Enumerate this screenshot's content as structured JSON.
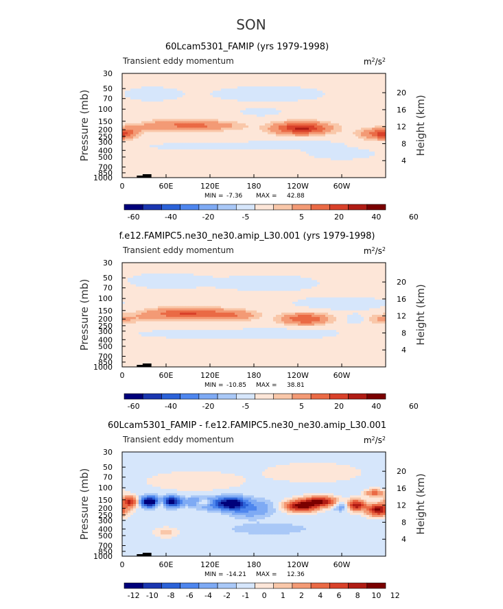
{
  "figure_title": "SON",
  "colors": {
    "neg6": "#00007a",
    "neg5": "#1a36b0",
    "neg4": "#2b62d8",
    "neg3": "#4e86ee",
    "neg2": "#7eaaf4",
    "neg1": "#a9c8f7",
    "neg0": "#d6e6fb",
    "pos0": "#fde6d8",
    "pos1": "#f9c7a9",
    "pos2": "#f39a75",
    "pos3": "#ea6a45",
    "pos4": "#d9412a",
    "pos5": "#b01c14",
    "pos6": "#7a0000"
  },
  "chart_data": [
    {
      "type": "heatmap",
      "title": "60Lcam5301_FAMIP (yrs 1979-1998)",
      "subtitle": "Transient eddy momentum",
      "units_base": "m",
      "units_exp1": "2",
      "units_mid": "/s",
      "units_exp2": "2",
      "ylabel": "Pressure (mb)",
      "ylabel_right": "Height (km)",
      "x_ticks": [
        "0",
        "60E",
        "120E",
        "180",
        "120W",
        "60W"
      ],
      "x_tick_lon": [
        0,
        60,
        120,
        180,
        240,
        300
      ],
      "xlim": [
        0,
        360
      ],
      "y_ticks": [
        "30",
        "50",
        "70",
        "100",
        "150",
        "200",
        "250",
        "300",
        "400",
        "500",
        "700",
        "850",
        "1000"
      ],
      "y_tick_p": [
        30,
        50,
        70,
        100,
        150,
        200,
        250,
        300,
        400,
        500,
        700,
        850,
        1000
      ],
      "ylim": [
        1000,
        30
      ],
      "height_ticks": [
        "4",
        "8",
        "12",
        "16",
        "20"
      ],
      "height_tick_km": [
        4,
        8,
        12,
        16,
        20
      ],
      "stats_min_label": "MIN =",
      "stats_min": "-7.36",
      "stats_max_label": "MAX =",
      "stats_max": "42.88",
      "colorbar_labels": [
        "-60",
        "-40",
        "-20",
        "-5",
        "5",
        "20",
        "40",
        "60"
      ],
      "field": {
        "background": 0.6,
        "blobs": [
          {
            "lon": 75,
            "p": 170,
            "dlon": 28,
            "dlogp": 0.13,
            "amp": 18
          },
          {
            "lon": 105,
            "p": 175,
            "dlon": 18,
            "dlogp": 0.11,
            "amp": 10
          },
          {
            "lon": 140,
            "p": 175,
            "dlon": 22,
            "dlogp": 0.12,
            "amp": 10
          },
          {
            "lon": 40,
            "p": 180,
            "dlon": 12,
            "dlogp": 0.1,
            "amp": 6
          },
          {
            "lon": 12,
            "p": 200,
            "dlon": 12,
            "dlogp": 0.12,
            "amp": 9
          },
          {
            "lon": 245,
            "p": 190,
            "dlon": 26,
            "dlogp": 0.14,
            "amp": 42
          },
          {
            "lon": 350,
            "p": 230,
            "dlon": 18,
            "dlogp": 0.13,
            "amp": 22
          },
          {
            "lon": 0,
            "p": 230,
            "dlon": 10,
            "dlogp": 0.12,
            "amp": 14
          },
          {
            "lon": 240,
            "p": 330,
            "dlon": 40,
            "dlogp": 0.1,
            "amp": -2
          },
          {
            "lon": 120,
            "p": 350,
            "dlon": 60,
            "dlogp": 0.1,
            "amp": -1.5
          },
          {
            "lon": 300,
            "p": 450,
            "dlon": 30,
            "dlogp": 0.12,
            "amp": -2
          },
          {
            "lon": 200,
            "p": 60,
            "dlon": 60,
            "dlogp": 0.2,
            "amp": -1.4
          },
          {
            "lon": 40,
            "p": 60,
            "dlon": 30,
            "dlogp": 0.2,
            "amp": -1.2
          },
          {
            "lon": 30,
            "p": 110,
            "dlon": 20,
            "dlogp": 0.12,
            "amp": 1.5
          },
          {
            "lon": 190,
            "p": 110,
            "dlon": 20,
            "dlogp": 0.1,
            "amp": -1.5
          }
        ]
      }
    },
    {
      "type": "heatmap",
      "title": "f.e12.FAMIPC5.ne30_ne30.amip_L30.001 (yrs 1979-1998)",
      "subtitle": "Transient eddy momentum",
      "units_base": "m",
      "units_exp1": "2",
      "units_mid": "/s",
      "units_exp2": "2",
      "ylabel": "Pressure (mb)",
      "ylabel_right": "Height (km)",
      "x_ticks": [
        "0",
        "60E",
        "120E",
        "180",
        "120W",
        "60W"
      ],
      "x_tick_lon": [
        0,
        60,
        120,
        180,
        240,
        300
      ],
      "xlim": [
        0,
        360
      ],
      "y_ticks": [
        "30",
        "50",
        "70",
        "100",
        "150",
        "200",
        "250",
        "300",
        "400",
        "500",
        "700",
        "850",
        "1000"
      ],
      "y_tick_p": [
        30,
        50,
        70,
        100,
        150,
        200,
        250,
        300,
        400,
        500,
        700,
        850,
        1000
      ],
      "ylim": [
        1000,
        30
      ],
      "height_ticks": [
        "4",
        "8",
        "12",
        "16",
        "20"
      ],
      "height_tick_km": [
        4,
        8,
        12,
        16,
        20
      ],
      "stats_min_label": "MIN =",
      "stats_min": "-10.85",
      "stats_max_label": "MAX =",
      "stats_max": "38.81",
      "colorbar_labels": [
        "-60",
        "-40",
        "-20",
        "-5",
        "5",
        "20",
        "40",
        "60"
      ],
      "field": {
        "background": 0.5,
        "blobs": [
          {
            "lon": 80,
            "p": 165,
            "dlon": 30,
            "dlogp": 0.13,
            "amp": 26
          },
          {
            "lon": 130,
            "p": 170,
            "dlon": 30,
            "dlogp": 0.13,
            "amp": 15
          },
          {
            "lon": 160,
            "p": 180,
            "dlon": 18,
            "dlogp": 0.12,
            "amp": 10
          },
          {
            "lon": 35,
            "p": 185,
            "dlon": 14,
            "dlogp": 0.12,
            "amp": 8
          },
          {
            "lon": 8,
            "p": 200,
            "dlon": 10,
            "dlogp": 0.12,
            "amp": 6
          },
          {
            "lon": 250,
            "p": 200,
            "dlon": 22,
            "dlogp": 0.13,
            "amp": 30
          },
          {
            "lon": 352,
            "p": 200,
            "dlon": 12,
            "dlogp": 0.12,
            "amp": 10
          },
          {
            "lon": 320,
            "p": 200,
            "dlon": 14,
            "dlogp": 0.1,
            "amp": -3
          },
          {
            "lon": 230,
            "p": 320,
            "dlon": 40,
            "dlogp": 0.12,
            "amp": -2
          },
          {
            "lon": 110,
            "p": 330,
            "dlon": 60,
            "dlogp": 0.1,
            "amp": -1.5
          },
          {
            "lon": 300,
            "p": 120,
            "dlon": 40,
            "dlogp": 0.15,
            "amp": -2
          },
          {
            "lon": 200,
            "p": 60,
            "dlon": 50,
            "dlogp": 0.2,
            "amp": -1.3
          },
          {
            "lon": 60,
            "p": 55,
            "dlon": 40,
            "dlogp": 0.2,
            "amp": -1.2
          }
        ]
      }
    },
    {
      "type": "heatmap",
      "title": "60Lcam5301_FAMIP - f.e12.FAMIPC5.ne30_ne30.amip_L30.001",
      "subtitle": "Transient eddy momentum",
      "units_base": "m",
      "units_exp1": "2",
      "units_mid": "/s",
      "units_exp2": "2",
      "ylabel": "Pressure (mb)",
      "ylabel_right": "Height (km)",
      "x_ticks": [
        "0",
        "60E",
        "120E",
        "180",
        "120W",
        "60W"
      ],
      "x_tick_lon": [
        0,
        60,
        120,
        180,
        240,
        300
      ],
      "xlim": [
        0,
        360
      ],
      "y_ticks": [
        "30",
        "50",
        "70",
        "100",
        "150",
        "200",
        "250",
        "300",
        "400",
        "500",
        "700",
        "850",
        "1000"
      ],
      "y_tick_p": [
        30,
        50,
        70,
        100,
        150,
        200,
        250,
        300,
        400,
        500,
        700,
        850,
        1000
      ],
      "ylim": [
        1000,
        30
      ],
      "height_ticks": [
        "4",
        "8",
        "12",
        "16",
        "20"
      ],
      "height_tick_km": [
        4,
        8,
        12,
        16,
        20
      ],
      "stats_min_label": "MIN =",
      "stats_min": "-14.21",
      "stats_max_label": "MAX =",
      "stats_max": "12.36",
      "colorbar_labels": [
        "-12",
        "-10",
        "-8",
        "-6",
        "-4",
        "-2",
        "-1",
        "0",
        "1",
        "2",
        "4",
        "6",
        "8",
        "10",
        "12"
      ],
      "field": {
        "background": -0.3,
        "blobs": [
          {
            "lon": 38,
            "p": 160,
            "dlon": 8,
            "dlogp": 0.12,
            "amp": -14
          },
          {
            "lon": 68,
            "p": 160,
            "dlon": 8,
            "dlogp": 0.12,
            "amp": -12
          },
          {
            "lon": 150,
            "p": 170,
            "dlon": 12,
            "dlogp": 0.14,
            "amp": -11
          },
          {
            "lon": 98,
            "p": 160,
            "dlon": 10,
            "dlogp": 0.1,
            "amp": -3
          },
          {
            "lon": 125,
            "p": 170,
            "dlon": 16,
            "dlogp": 0.14,
            "amp": -5
          },
          {
            "lon": 175,
            "p": 200,
            "dlon": 20,
            "dlogp": 0.2,
            "amp": -4
          },
          {
            "lon": 10,
            "p": 160,
            "dlon": 7,
            "dlogp": 0.12,
            "amp": 9
          },
          {
            "lon": 52,
            "p": 170,
            "dlon": 6,
            "dlogp": 0.1,
            "amp": 3
          },
          {
            "lon": 112,
            "p": 165,
            "dlon": 8,
            "dlogp": 0.08,
            "amp": 5
          },
          {
            "lon": 245,
            "p": 185,
            "dlon": 14,
            "dlogp": 0.12,
            "amp": 12
          },
          {
            "lon": 270,
            "p": 160,
            "dlon": 14,
            "dlogp": 0.11,
            "amp": 11
          },
          {
            "lon": 300,
            "p": 190,
            "dlon": 8,
            "dlogp": 0.1,
            "amp": -3
          },
          {
            "lon": 320,
            "p": 180,
            "dlon": 8,
            "dlogp": 0.12,
            "amp": 10
          },
          {
            "lon": 350,
            "p": 210,
            "dlon": 10,
            "dlogp": 0.13,
            "amp": 11
          },
          {
            "lon": 345,
            "p": 120,
            "dlon": 8,
            "dlogp": 0.08,
            "amp": 6
          },
          {
            "lon": 60,
            "p": 450,
            "dlon": 10,
            "dlogp": 0.1,
            "amp": 2
          },
          {
            "lon": 200,
            "p": 400,
            "dlon": 40,
            "dlogp": 0.15,
            "amp": -1.5
          },
          {
            "lon": 100,
            "p": 80,
            "dlon": 40,
            "dlogp": 0.2,
            "amp": 1.2
          },
          {
            "lon": 260,
            "p": 60,
            "dlon": 40,
            "dlogp": 0.2,
            "amp": 1.2
          }
        ]
      }
    }
  ]
}
